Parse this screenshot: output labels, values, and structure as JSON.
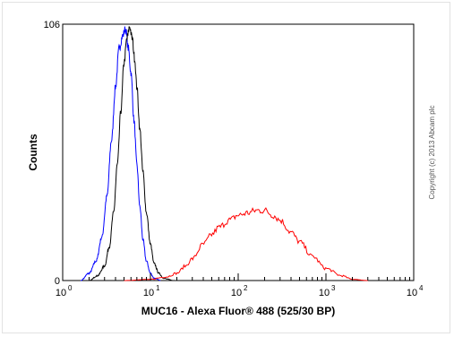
{
  "chart_data": {
    "type": "line",
    "title": "",
    "xlabel": "MUC16 - Alexa Fluor® 488 (525/30 BP)",
    "ylabel": "Counts",
    "x_scale": "log",
    "xlim": [
      1,
      10000
    ],
    "ylim": [
      0,
      106
    ],
    "x_ticks": [
      {
        "base": "10",
        "exp": "0"
      },
      {
        "base": "10",
        "exp": "1"
      },
      {
        "base": "10",
        "exp": "2"
      },
      {
        "base": "10",
        "exp": "3"
      },
      {
        "base": "10",
        "exp": "4"
      }
    ],
    "x_tick_values": [
      1,
      10,
      100,
      1000,
      10000
    ],
    "y_ticks": [
      "0",
      "106"
    ],
    "y_tick_values": [
      0,
      106
    ],
    "grid": false,
    "legend": "none",
    "copyright": "Copyright (c) 2013 Abcam plc",
    "series": [
      {
        "color": "#0000ff",
        "x": [
          1.6,
          2.0,
          2.4,
          2.8,
          3.2,
          3.6,
          4.0,
          4.4,
          4.8,
          5.2,
          5.6,
          6.0,
          6.5,
          7.0,
          7.6,
          8.2,
          9.0,
          10.0,
          11.0,
          12.0,
          13.0
        ],
        "y": [
          0,
          3,
          8,
          18,
          35,
          58,
          80,
          96,
          101,
          104,
          96,
          86,
          66,
          48,
          30,
          17,
          8,
          3,
          1,
          0.5,
          0
        ]
      },
      {
        "color": "#000000",
        "x": [
          2.0,
          2.5,
          3.0,
          3.4,
          3.8,
          4.2,
          4.6,
          5.0,
          5.4,
          5.8,
          6.2,
          6.6,
          7.0,
          7.6,
          8.2,
          9.0,
          10.0,
          11.0,
          12.5,
          14.0,
          16.0,
          18.0
        ],
        "y": [
          0,
          2,
          6,
          14,
          28,
          48,
          70,
          90,
          100,
          105,
          100,
          92,
          80,
          62,
          45,
          28,
          15,
          7,
          3,
          1,
          0.5,
          0
        ]
      },
      {
        "color": "#ff0000",
        "x": [
          5,
          10,
          15,
          20,
          25,
          30,
          40,
          50,
          60,
          80,
          100,
          130,
          160,
          200,
          250,
          300,
          400,
          500,
          700,
          1000,
          1500,
          2000,
          3000
        ],
        "y": [
          0,
          0.5,
          1.5,
          3,
          6,
          9,
          15,
          19,
          22,
          25,
          27,
          28,
          29,
          29,
          27,
          25,
          20,
          16,
          10,
          5,
          2,
          0.5,
          0
        ]
      }
    ]
  }
}
